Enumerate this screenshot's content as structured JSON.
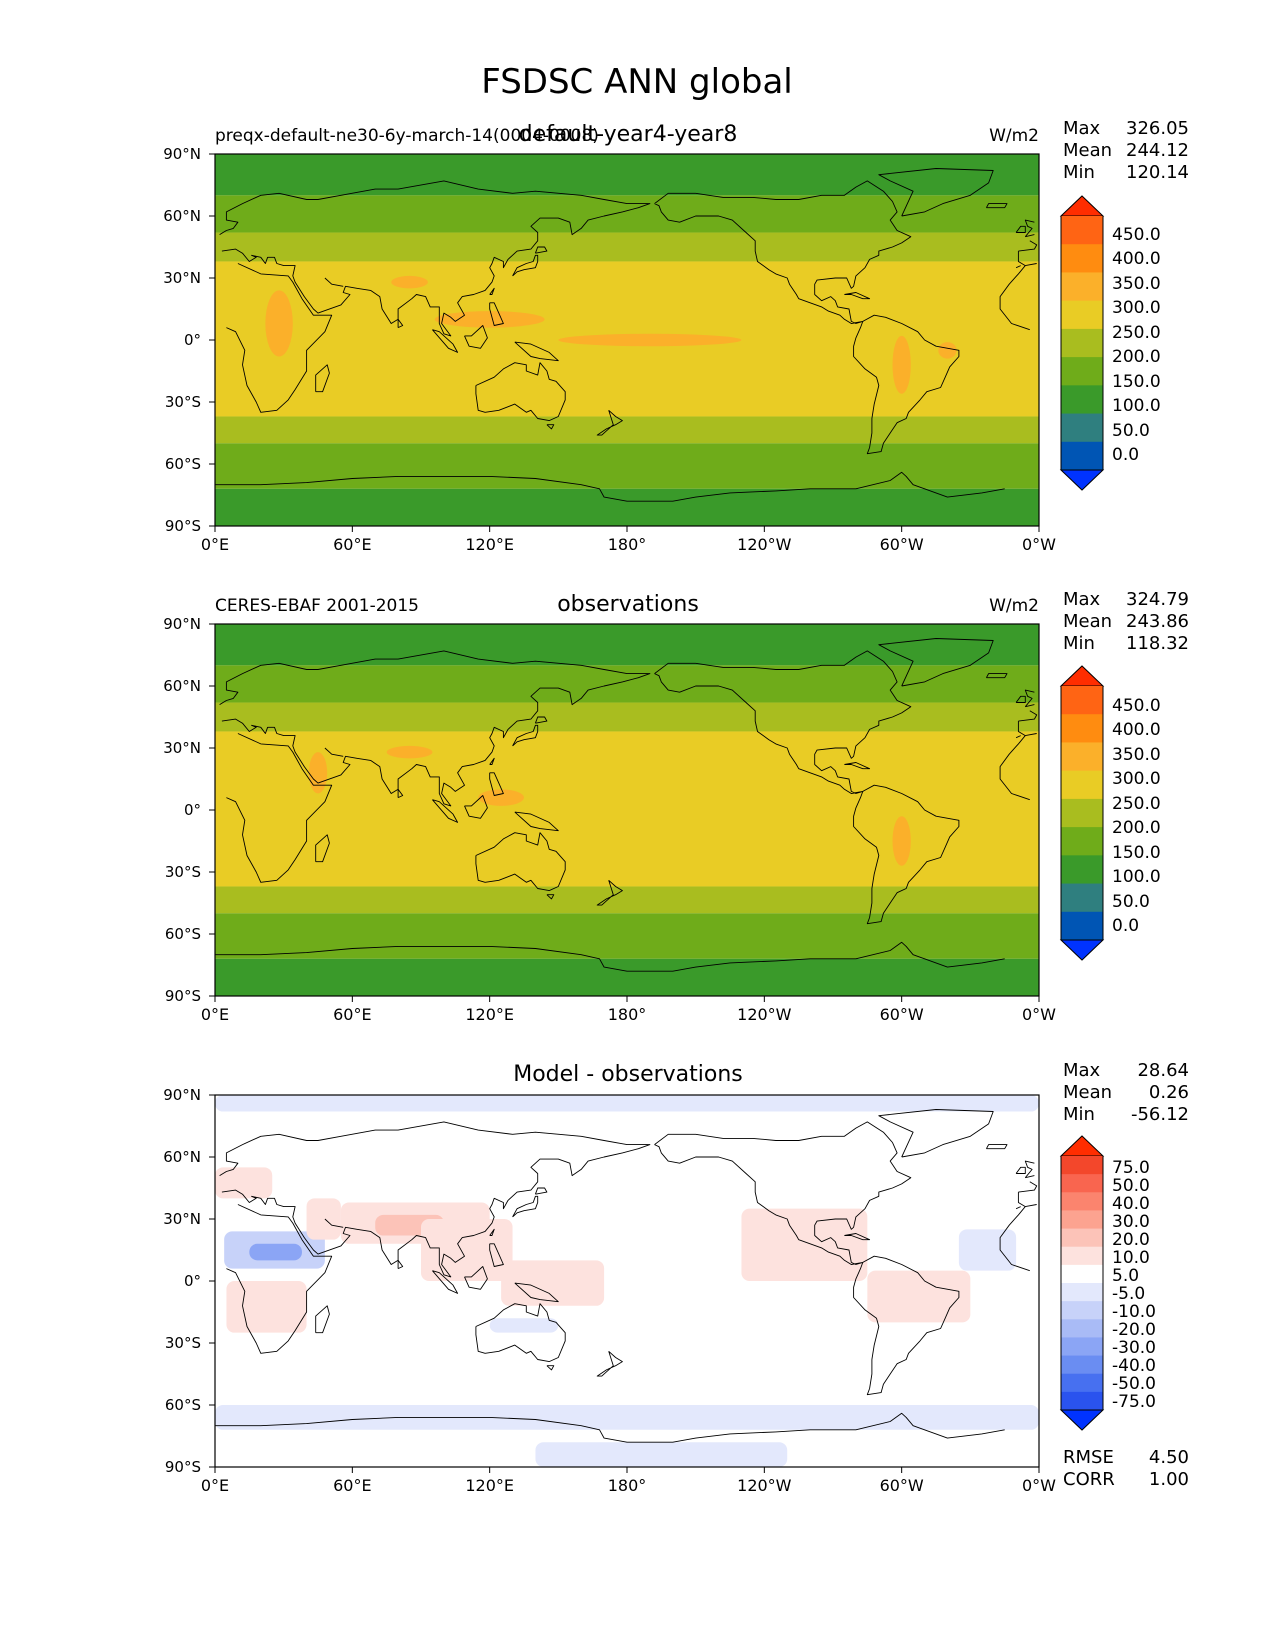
{
  "figure": {
    "title": "FSDSC ANN global"
  },
  "colors": {
    "cb_main": [
      "#0033ff",
      "#0055b4",
      "#2f7f7f",
      "#3a9a2a",
      "#6fac1a",
      "#a9bd1f",
      "#e9cc25",
      "#fbb02a",
      "#ff8c10",
      "#ff6414",
      "#ff2d00"
    ],
    "cb_diff": [
      "#0033ff",
      "#2a53ee",
      "#4770f0",
      "#6a8df2",
      "#8ba5f5",
      "#a9bbf6",
      "#c7d2f9",
      "#e3e8fc",
      "#ffffff",
      "#fde2de",
      "#fcc3b8",
      "#fca390",
      "#fb846e",
      "#f9654f",
      "#f3472b",
      "#ff2d00"
    ],
    "land_outline": "#000000"
  },
  "panels": [
    {
      "id": "model",
      "left_label": "preqx-default-ne30-6y-march-14(0004-0008)",
      "center_title": "default-year4-year8",
      "units": "W/m2",
      "stats": {
        "labels": [
          "Max",
          "Mean",
          "Min"
        ],
        "values": [
          "326.05",
          "244.12",
          "120.14"
        ]
      },
      "colorbar_ticks": [
        "450.0",
        "400.0",
        "350.0",
        "300.0",
        "250.0",
        "200.0",
        "150.0",
        "100.0",
        "50.0",
        "0.0"
      ]
    },
    {
      "id": "obs",
      "left_label": "CERES-EBAF 2001-2015",
      "center_title": "observations",
      "units": "W/m2",
      "stats": {
        "labels": [
          "Max",
          "Mean",
          "Min"
        ],
        "values": [
          "324.79",
          "243.86",
          "118.32"
        ]
      },
      "colorbar_ticks": [
        "450.0",
        "400.0",
        "350.0",
        "300.0",
        "250.0",
        "200.0",
        "150.0",
        "100.0",
        "50.0",
        "0.0"
      ]
    },
    {
      "id": "diff",
      "left_label": "",
      "center_title": "Model - observations",
      "units": "",
      "stats": {
        "labels": [
          "Max",
          "Mean",
          "Min"
        ],
        "values": [
          "28.64",
          "0.26",
          "-56.12"
        ]
      },
      "colorbar_ticks": [
        "75.0",
        "50.0",
        "40.0",
        "30.0",
        "20.0",
        "10.0",
        "5.0",
        "-5.0",
        "-10.0",
        "-20.0",
        "-30.0",
        "-40.0",
        "-50.0",
        "-75.0"
      ],
      "extra_stats": {
        "labels": [
          "RMSE",
          "CORR"
        ],
        "values": [
          "4.50",
          "1.00"
        ]
      }
    }
  ],
  "axes": {
    "x_ticks": [
      "0°E",
      "60°E",
      "120°E",
      "180°",
      "120°W",
      "60°W",
      "0°W"
    ],
    "y_ticks": [
      "90°N",
      "60°N",
      "30°N",
      "0°",
      "30°S",
      "60°S",
      "90°S"
    ]
  },
  "chart_data": [
    {
      "type": "heatmap",
      "title": "default-year4-year8",
      "units": "W/m2",
      "levels": [
        0,
        50,
        100,
        150,
        200,
        250,
        300,
        350,
        400,
        450
      ],
      "zonal_bands": [
        {
          "lat_range": [
            90,
            70
          ],
          "class": "100-150"
        },
        {
          "lat_range": [
            70,
            52
          ],
          "class": "150-200"
        },
        {
          "lat_range": [
            52,
            38
          ],
          "class": "200-250"
        },
        {
          "lat_range": [
            38,
            -37
          ],
          "class": "250-300"
        },
        {
          "lat_range": [
            -37,
            -50
          ],
          "class": "200-250"
        },
        {
          "lat_range": [
            -50,
            -72
          ],
          "class": "150-200"
        },
        {
          "lat_range": [
            -72,
            -90
          ],
          "class": "100-150"
        }
      ],
      "stats": {
        "max": 326.05,
        "mean": 244.12,
        "min": 120.14
      }
    },
    {
      "type": "heatmap",
      "title": "observations",
      "units": "W/m2",
      "levels": [
        0,
        50,
        100,
        150,
        200,
        250,
        300,
        350,
        400,
        450
      ],
      "zonal_bands": [
        {
          "lat_range": [
            90,
            70
          ],
          "class": "100-150"
        },
        {
          "lat_range": [
            70,
            52
          ],
          "class": "150-200"
        },
        {
          "lat_range": [
            52,
            38
          ],
          "class": "200-250"
        },
        {
          "lat_range": [
            38,
            -37
          ],
          "class": "250-300"
        },
        {
          "lat_range": [
            -37,
            -50
          ],
          "class": "200-250"
        },
        {
          "lat_range": [
            -50,
            -72
          ],
          "class": "150-200"
        },
        {
          "lat_range": [
            -72,
            -90
          ],
          "class": "100-150"
        }
      ],
      "stats": {
        "max": 324.79,
        "mean": 243.86,
        "min": 118.32
      }
    },
    {
      "type": "heatmap",
      "title": "Model - observations",
      "levels": [
        -75,
        -50,
        -40,
        -30,
        -20,
        -10,
        -5,
        5,
        10,
        20,
        30,
        40,
        50,
        75
      ],
      "stats": {
        "max": 28.64,
        "mean": 0.26,
        "min": -56.12,
        "rmse": 4.5,
        "corr": 1.0
      }
    }
  ]
}
